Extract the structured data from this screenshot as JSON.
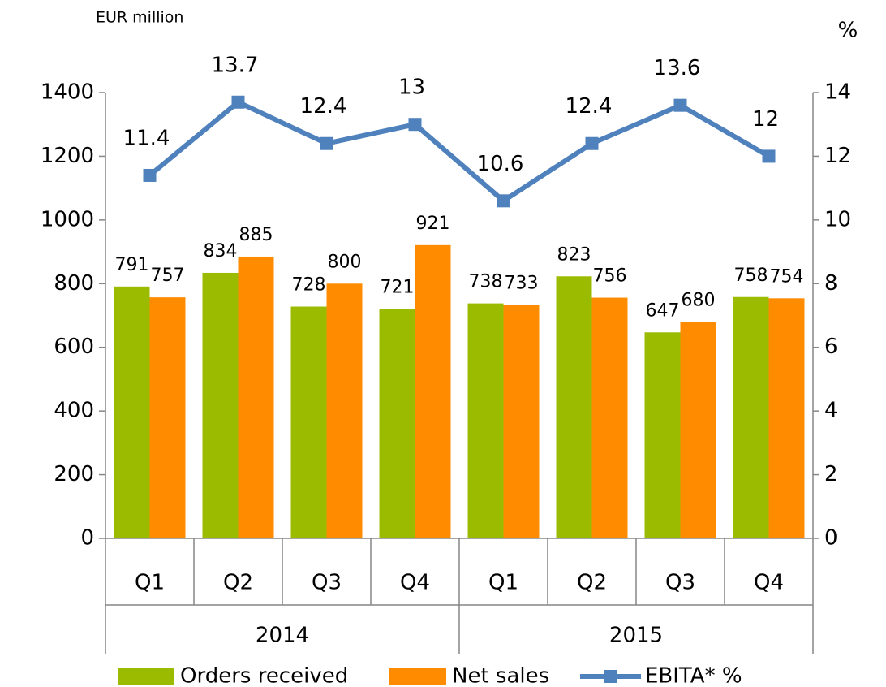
{
  "chart_data": {
    "type": "bar_line",
    "y_axis_label": "EUR million",
    "y2_axis_label": "%",
    "categories": [
      "Q1",
      "Q2",
      "Q3",
      "Q4",
      "Q1",
      "Q2",
      "Q3",
      "Q4"
    ],
    "category_groups": [
      "2014",
      "2015"
    ],
    "series": [
      {
        "name": "Orders received",
        "type": "bar",
        "color": "#9bbb00",
        "values": [
          791,
          834,
          728,
          721,
          738,
          823,
          647,
          758
        ]
      },
      {
        "name": "Net sales",
        "type": "bar",
        "color": "#ff8c00",
        "values": [
          757,
          885,
          800,
          921,
          733,
          756,
          680,
          754
        ]
      },
      {
        "name": "EBITA* %",
        "type": "line",
        "axis": "y2",
        "color": "#4f81bd",
        "values": [
          11.4,
          13.7,
          12.4,
          13.0,
          10.6,
          12.4,
          13.6,
          12.0
        ]
      }
    ],
    "ylim": [
      0,
      1400
    ],
    "yticks": [
      0,
      200,
      400,
      600,
      800,
      1000,
      1200,
      1400
    ],
    "y2lim": [
      0,
      14
    ],
    "y2ticks": [
      0,
      2,
      4,
      6,
      8,
      10,
      12,
      14
    ],
    "value_labels_format": "printed",
    "grid": false
  }
}
